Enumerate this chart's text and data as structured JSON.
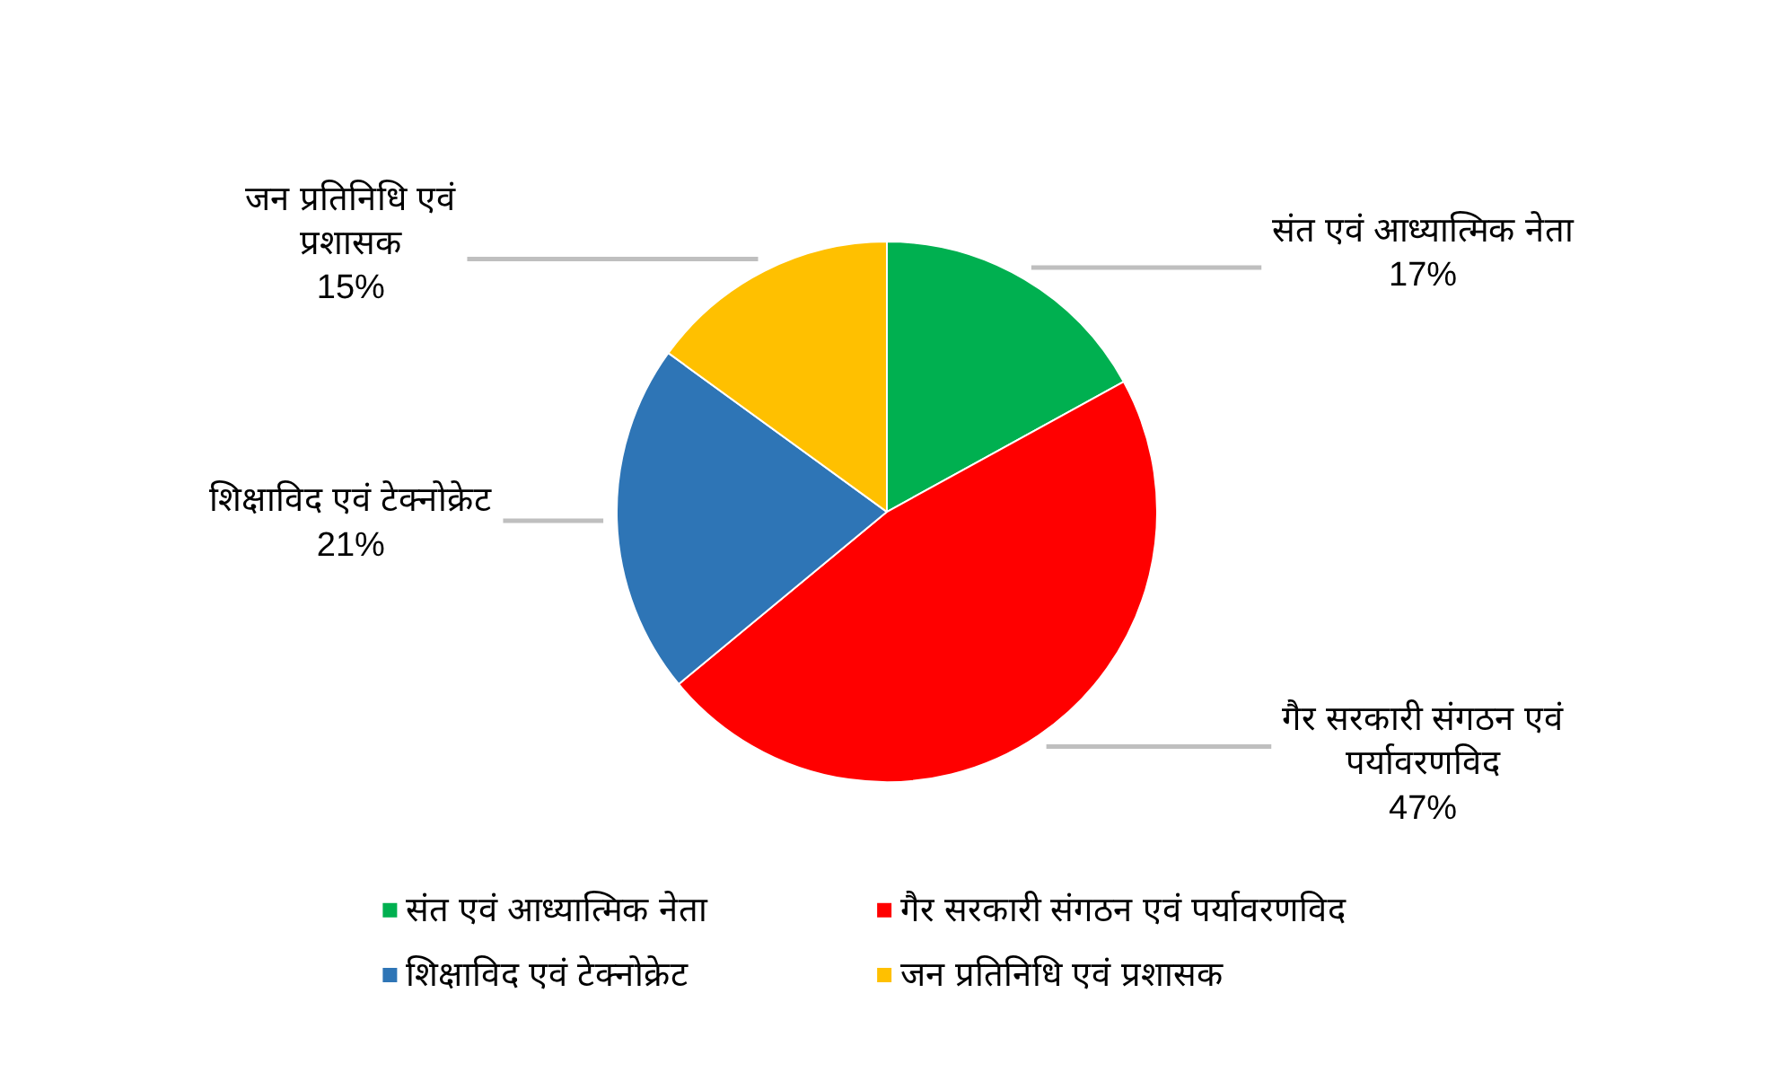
{
  "chart_data": {
    "type": "pie",
    "categories": [
      "संत एवं आध्यात्मिक नेता",
      "गैर सरकारी संगठन एवं पर्यावरणविद",
      "शिक्षाविद एवं टेक्नोक्रेट",
      "जन प्रतिनिधि एवं प्रशासक"
    ],
    "values": [
      17,
      47,
      21,
      15
    ],
    "value_labels": [
      "17%",
      "47%",
      "21%",
      "15%"
    ],
    "colors": [
      "#00b050",
      "#ff0000",
      "#2e75b6",
      "#ffc000"
    ],
    "legend": "bottom"
  }
}
